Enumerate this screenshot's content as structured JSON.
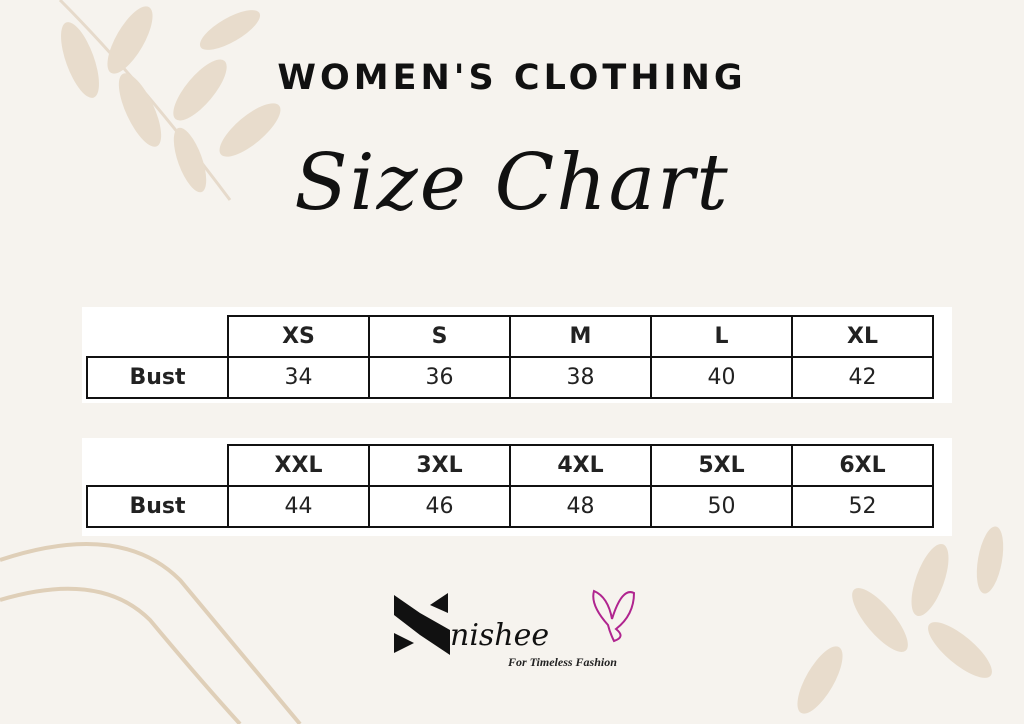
{
  "header": {
    "title": "WOMEN'S CLOTHING",
    "subtitle": "Size Chart"
  },
  "tables": [
    {
      "row_label": "Bust",
      "sizes": [
        "XS",
        "S",
        "M",
        "L",
        "XL"
      ],
      "values": [
        "34",
        "36",
        "38",
        "40",
        "42"
      ]
    },
    {
      "row_label": "Bust",
      "sizes": [
        "XXL",
        "3XL",
        "4XL",
        "5XL",
        "6XL"
      ],
      "values": [
        "44",
        "46",
        "48",
        "50",
        "52"
      ]
    }
  ],
  "logo": {
    "brand": "nishee",
    "tagline": "For Timeless Fashion",
    "accent": "#b0248f"
  },
  "colors": {
    "background": "#f6f3ee",
    "leaf": "#e3d6c4"
  }
}
